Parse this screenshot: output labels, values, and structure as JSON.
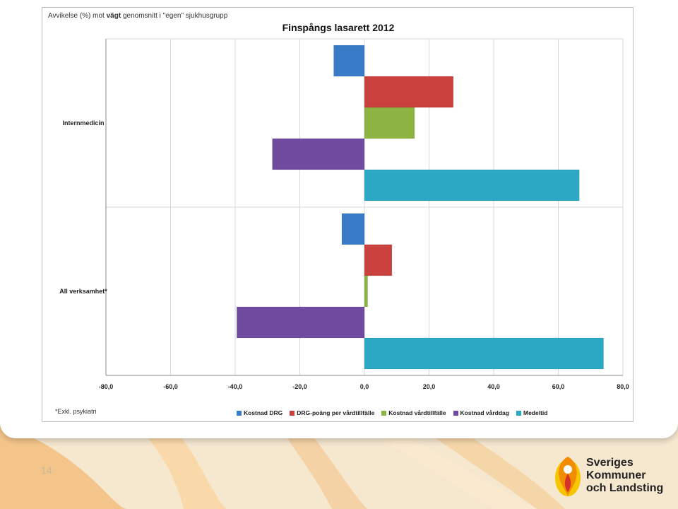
{
  "slide": {
    "page_number": "14",
    "logo": {
      "line1": "Sveriges",
      "line2": "Kommuner",
      "line3": "och Landsting",
      "colors": {
        "orange": "#f28c00",
        "red": "#d5322b",
        "yellow": "#f7c600"
      }
    },
    "background_colors": {
      "base": "#f6e7cf",
      "wave": "#f3c58a",
      "wave_light": "#fbe9cf"
    }
  },
  "chart": {
    "subtitle_pre": "Avvikelse (%) mot ",
    "subtitle_bold": "vägt",
    "subtitle_post": " genomsnitt i \"egen\" sjukhusgrupp",
    "footnote": "*Exkl. psykiatri",
    "x_ticks": [
      "-80,0",
      "-60,0",
      "-40,0",
      "-20,0",
      "0,0",
      "20,0",
      "40,0",
      "60,0",
      "80,0"
    ]
  },
  "chart_data": {
    "type": "bar",
    "orientation": "horizontal",
    "title": "Finspångs lasarett 2012",
    "categories": [
      "Internmedicin",
      "All verksamhet*"
    ],
    "xlim": [
      -80,
      80
    ],
    "grid": true,
    "legend_position": "bottom",
    "series": [
      {
        "name": "Kostnad DRG",
        "color": "#3a7bc8",
        "values": [
          -9.5,
          -7.0
        ]
      },
      {
        "name": "DRG-poäng per vårdtillfälle",
        "color": "#c9403c",
        "values": [
          27.5,
          8.5
        ]
      },
      {
        "name": "Kostnad vårdtillfälle",
        "color": "#8db443",
        "values": [
          15.5,
          1.0
        ]
      },
      {
        "name": "Kostnad vårddag",
        "color": "#6f4a9e",
        "values": [
          -28.5,
          -39.5
        ]
      },
      {
        "name": "Medeltid",
        "color": "#2aa8c4",
        "values": [
          66.5,
          74.0
        ]
      }
    ]
  }
}
